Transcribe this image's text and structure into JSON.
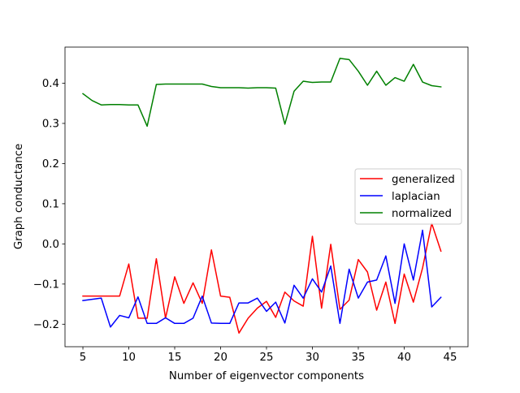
{
  "chart_data": {
    "type": "line",
    "title": "",
    "xlabel": "Number of eigenvector components",
    "ylabel": "Graph conductance",
    "xlim": [
      3.05,
      46.95
    ],
    "ylim": [
      -0.256,
      0.49
    ],
    "xticks": [
      5,
      10,
      15,
      20,
      25,
      30,
      35,
      40,
      45
    ],
    "xtick_labels": [
      "5",
      "10",
      "15",
      "20",
      "25",
      "30",
      "35",
      "40",
      "45"
    ],
    "yticks": [
      -0.2,
      -0.1,
      0.0,
      0.1,
      0.2,
      0.3,
      0.4
    ],
    "ytick_labels": [
      "−0.2",
      "−0.1",
      "0.0",
      "0.1",
      "0.2",
      "0.3",
      "0.4"
    ],
    "grid": false,
    "legend_position": "center-right",
    "x": [
      5,
      6,
      7,
      8,
      9,
      10,
      11,
      12,
      13,
      14,
      15,
      16,
      17,
      18,
      19,
      20,
      21,
      22,
      23,
      24,
      25,
      26,
      27,
      28,
      29,
      30,
      31,
      32,
      33,
      34,
      35,
      36,
      37,
      38,
      39,
      40,
      41,
      42,
      43,
      44
    ],
    "series": [
      {
        "name": "generalized",
        "color": "#ff0000",
        "values": [
          -0.13,
          -0.13,
          -0.13,
          -0.13,
          -0.13,
          -0.05,
          -0.185,
          -0.185,
          -0.037,
          -0.185,
          -0.082,
          -0.148,
          -0.097,
          -0.148,
          -0.015,
          -0.13,
          -0.133,
          -0.222,
          -0.185,
          -0.16,
          -0.143,
          -0.183,
          -0.12,
          -0.142,
          -0.155,
          0.019,
          -0.16,
          -0.001,
          -0.163,
          -0.14,
          -0.039,
          -0.07,
          -0.165,
          -0.095,
          -0.198,
          -0.075,
          -0.145,
          -0.06,
          0.051,
          -0.018
        ]
      },
      {
        "name": "laplacian",
        "color": "#0000ff",
        "values": [
          -0.141,
          -0.138,
          -0.135,
          -0.207,
          -0.178,
          -0.184,
          -0.132,
          -0.198,
          -0.198,
          -0.184,
          -0.198,
          -0.198,
          -0.185,
          -0.13,
          -0.197,
          -0.198,
          -0.198,
          -0.147,
          -0.147,
          -0.135,
          -0.168,
          -0.145,
          -0.197,
          -0.103,
          -0.135,
          -0.087,
          -0.12,
          -0.055,
          -0.198,
          -0.063,
          -0.135,
          -0.095,
          -0.09,
          -0.03,
          -0.148,
          0.0,
          -0.09,
          0.034,
          -0.157,
          -0.133
        ]
      },
      {
        "name": "normalized",
        "color": "#008000",
        "values": [
          0.374,
          0.357,
          0.346,
          0.347,
          0.347,
          0.346,
          0.346,
          0.293,
          0.397,
          0.398,
          0.398,
          0.398,
          0.398,
          0.398,
          0.392,
          0.389,
          0.389,
          0.389,
          0.388,
          0.389,
          0.389,
          0.388,
          0.298,
          0.38,
          0.405,
          0.402,
          0.403,
          0.403,
          0.462,
          0.459,
          0.43,
          0.395,
          0.43,
          0.395,
          0.414,
          0.405,
          0.447,
          0.403,
          0.394,
          0.391
        ]
      }
    ]
  }
}
